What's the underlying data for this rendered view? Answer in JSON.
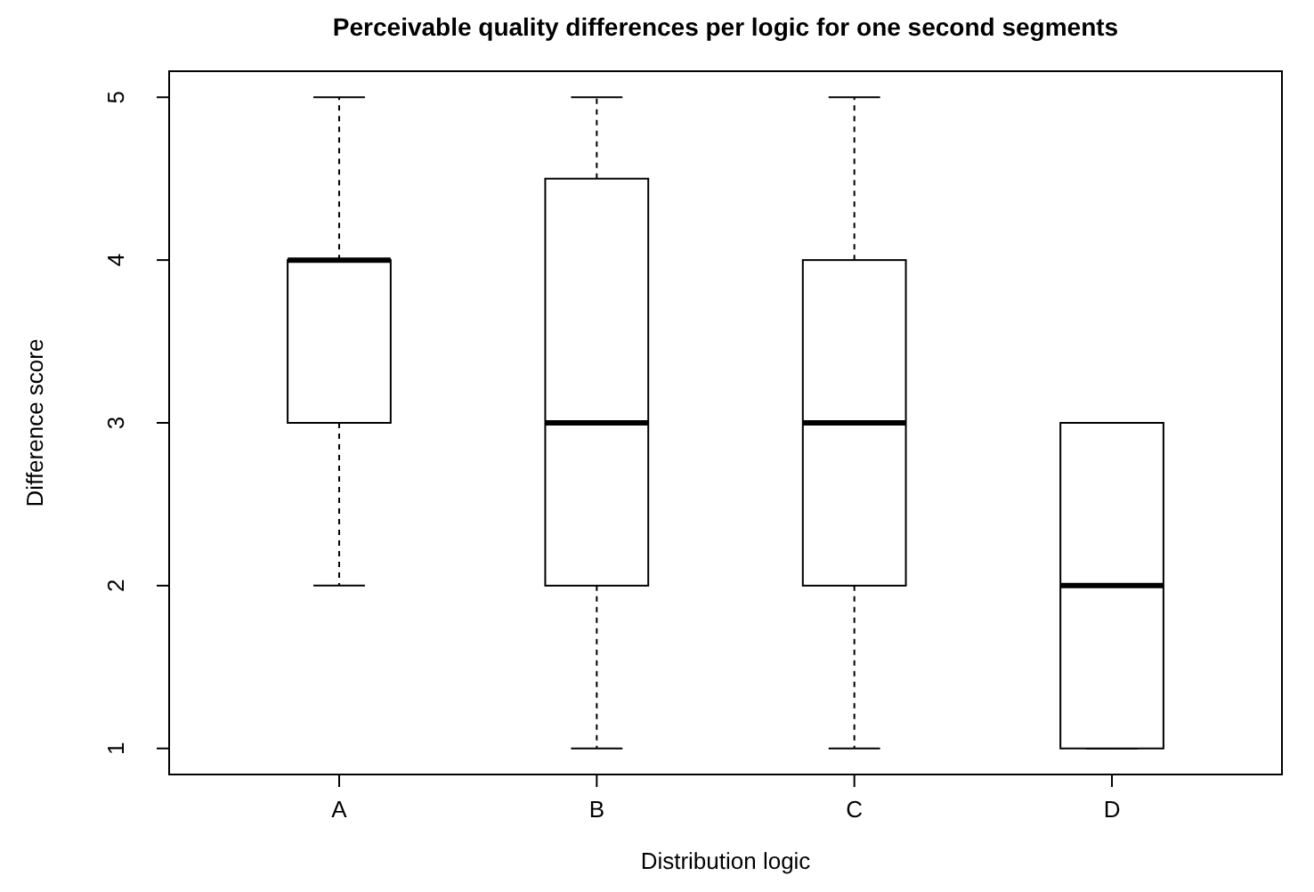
{
  "chart_data": {
    "type": "box",
    "title": "Perceivable quality differences per logic for one second segments",
    "xlabel": "Distribution logic",
    "ylabel": "Difference score",
    "categories": [
      "A",
      "B",
      "C",
      "D"
    ],
    "boxes": [
      {
        "low": 2,
        "q1": 3,
        "median": 4,
        "q3": 4,
        "high": 5
      },
      {
        "low": 1,
        "q1": 2,
        "median": 3,
        "q3": 4.5,
        "high": 5
      },
      {
        "low": 1,
        "q1": 2,
        "median": 3,
        "q3": 4,
        "high": 5
      },
      {
        "low": 1,
        "q1": 1,
        "median": 2,
        "q3": 3,
        "high": 3
      }
    ],
    "ylim": [
      0.84,
      5.16
    ],
    "yticks": [
      1,
      2,
      3,
      4,
      5
    ],
    "grid": false
  }
}
